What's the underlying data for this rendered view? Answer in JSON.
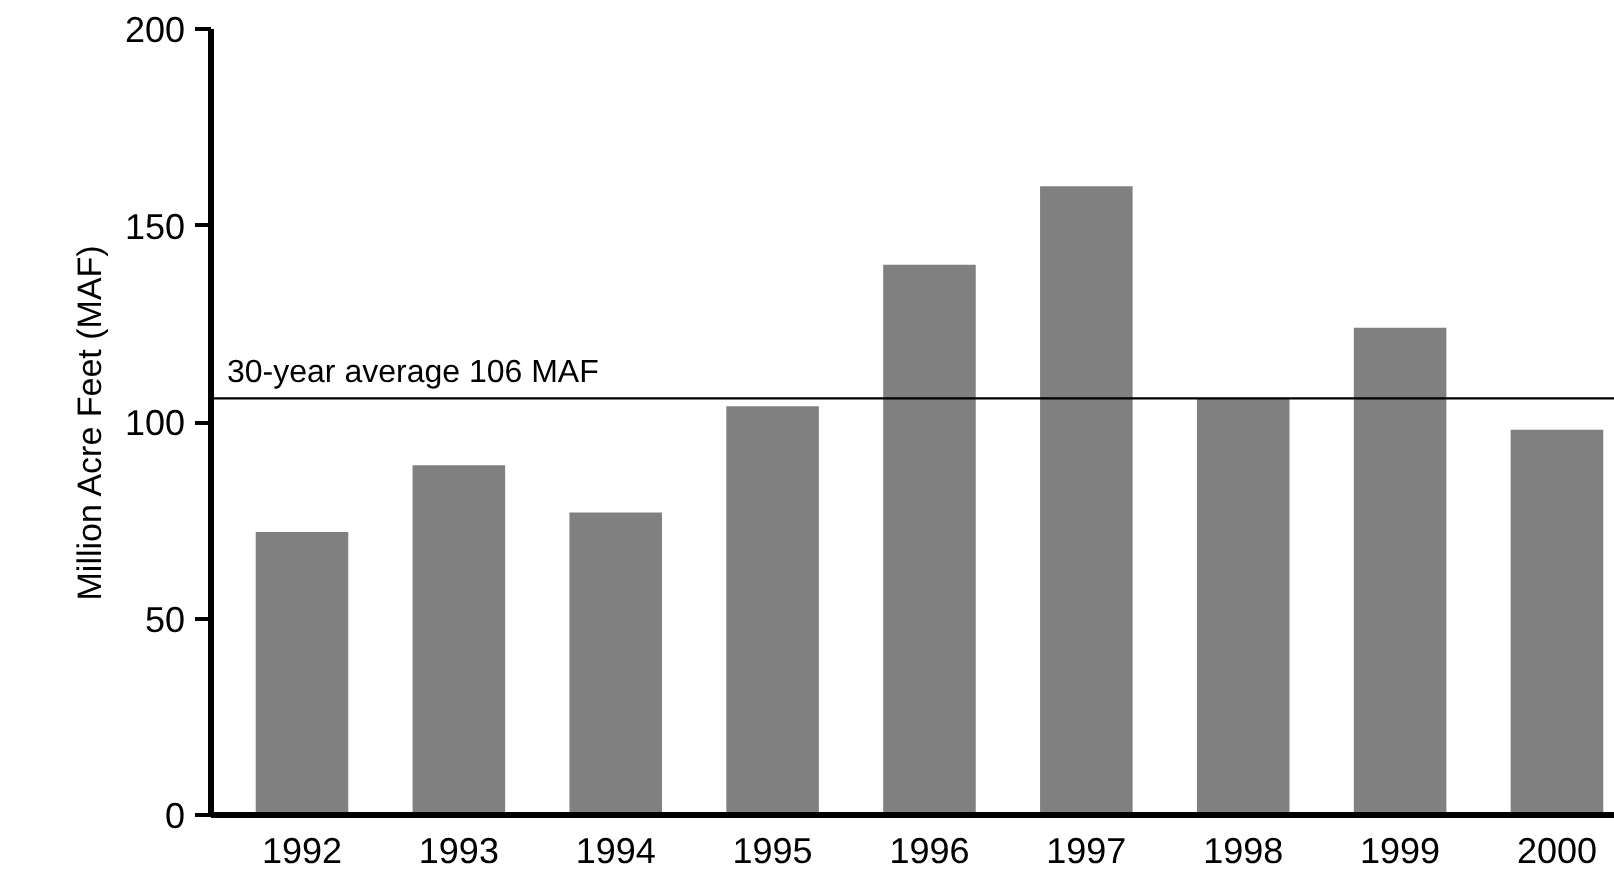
{
  "chart_data": {
    "type": "bar",
    "ylabel": "Million Acre Feet (MAF)",
    "categories": [
      "1992",
      "1993",
      "1994",
      "1995",
      "1996",
      "1997",
      "1998",
      "1999",
      "2000"
    ],
    "values": [
      72,
      89,
      77,
      104,
      140,
      160,
      106,
      124,
      98
    ],
    "color": "#808080",
    "ylim": [
      0,
      200
    ],
    "yticks": [
      0,
      50,
      100,
      150,
      200
    ],
    "grid": false,
    "ref_lines": [
      {
        "axis": "y",
        "value": 106,
        "label": "30-year average 106 MAF",
        "color": "#000000"
      }
    ]
  }
}
